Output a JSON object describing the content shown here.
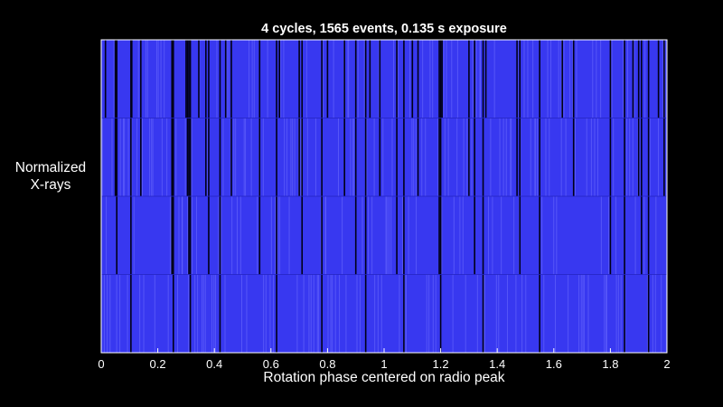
{
  "chart_data": {
    "type": "bar",
    "title": "4 cycles, 1565 events, 0.135 s exposure",
    "ylabel_lines": [
      "Normalized",
      "X-rays"
    ],
    "xlabel": "Rotation phase centered on radio peak",
    "xlim": [
      0,
      2
    ],
    "ylim": [
      0,
      4
    ],
    "x_ticks": [
      "0",
      "0.2",
      "0.4",
      "0.6",
      "0.8",
      "1",
      "1.2",
      "1.4",
      "1.6",
      "1.8",
      "2"
    ],
    "grid": false,
    "bar_color": "#3838f0",
    "event_color": "#7070ff",
    "background_color": "#000000",
    "cycle_levels": [
      {
        "cycle": 4,
        "y_range": [
          3,
          4
        ]
      },
      {
        "cycle": 3,
        "y_range": [
          2,
          3
        ]
      },
      {
        "cycle": 2,
        "y_range": [
          1,
          2
        ]
      },
      {
        "cycle": 1,
        "y_range": [
          0,
          1
        ]
      }
    ],
    "dark_gap_phases": [
      0.015,
      0.05,
      0.055,
      0.105,
      0.108,
      0.14,
      0.25,
      0.255,
      0.3,
      0.305,
      0.31,
      0.315,
      0.345,
      0.37,
      0.38,
      0.42,
      0.44,
      0.46,
      0.56,
      0.62,
      0.63,
      0.7,
      0.71,
      0.78,
      0.8,
      0.86,
      0.9,
      0.935,
      0.95,
      0.985,
      1.045,
      1.07,
      1.1,
      1.12,
      1.195,
      1.2,
      1.205,
      1.3,
      1.32,
      1.35,
      1.36,
      1.47,
      1.48,
      1.55,
      1.63,
      1.67,
      1.8,
      1.85,
      1.88,
      1.9,
      1.91,
      1.935,
      1.97,
      1.99
    ]
  }
}
